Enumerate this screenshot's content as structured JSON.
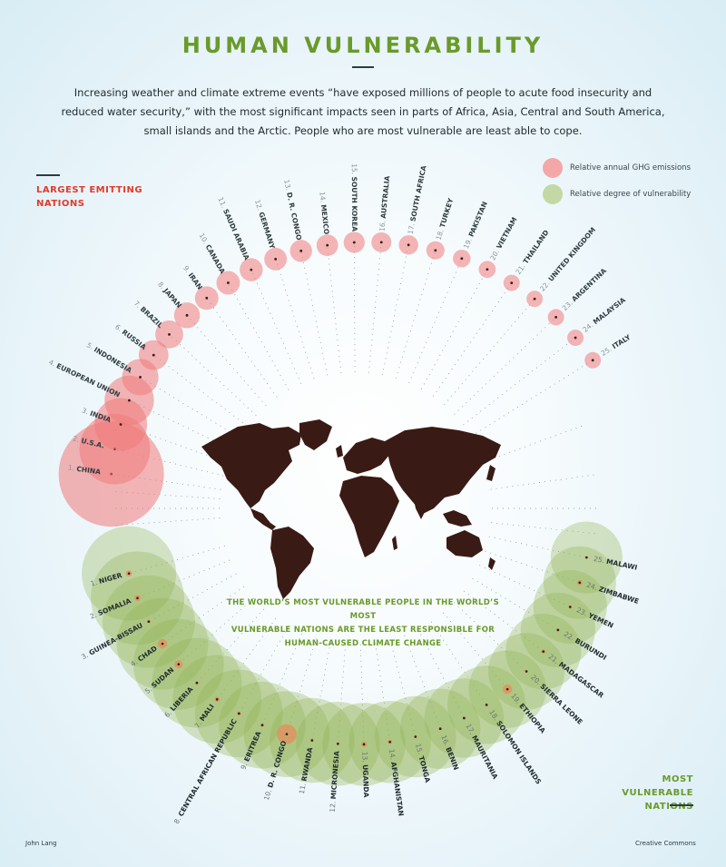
{
  "title": "HUMAN VULNERABILITY",
  "intro": "Increasing weather and climate extreme events “have exposed millions of people to acute food insecurity and reduced water security,” with the most significant impacts seen in parts of Africa, Asia, Central and South America, small islands and the Arctic. People who are most vulnerable are least able to cope.",
  "emitters_label": [
    "LARGEST EMITTING",
    "NATIONS"
  ],
  "vulnerable_label": [
    "MOST VULNERABLE",
    "NATIONS"
  ],
  "center_text": [
    "THE WORLD’S MOST VULNERABLE PEOPLE IN THE WORLD’S MOST",
    "VULNERABLE NATIONS ARE THE LEAST RESPONSIBLE FOR",
    "HUMAN-CAUSED CLIMATE CHANGE"
  ],
  "credits": {
    "author": "John Lang",
    "license": "Creative Commons"
  },
  "colors": {
    "emissions": "#f08a8a",
    "vulnerability": "#8fb04f",
    "title": "#6a9a2a",
    "emit_label": "#e03a2a",
    "map": "#3a1a14"
  },
  "chart_data": {
    "type": "bubble-radial",
    "legend": [
      {
        "label": "Relative annual GHG emissions",
        "color": "#f08a8a"
      },
      {
        "label": "Relative degree of vulnerability",
        "color": "#a9c98a"
      }
    ],
    "emissions": [
      {
        "rank": 1,
        "name": "CHINA",
        "value": 100
      },
      {
        "rank": 2,
        "name": "U.S.A.",
        "value": 45
      },
      {
        "rank": 3,
        "name": "INDIA",
        "value": 25
      },
      {
        "rank": 4,
        "name": "EUROPEAN UNION",
        "value": 22
      },
      {
        "rank": 5,
        "name": "INDONESIA",
        "value": 12
      },
      {
        "rank": 6,
        "name": "RUSSIA",
        "value": 8
      },
      {
        "rank": 7,
        "name": "BRAZIL",
        "value": 7
      },
      {
        "rank": 8,
        "name": "JAPAN",
        "value": 6
      },
      {
        "rank": 9,
        "name": "IRAN",
        "value": 5
      },
      {
        "rank": 10,
        "name": "CANADA",
        "value": 5
      },
      {
        "rank": 11,
        "name": "SAUDI ARABIA",
        "value": 4.8
      },
      {
        "rank": 12,
        "name": "GERMANY",
        "value": 4.6
      },
      {
        "rank": 13,
        "name": "D. R. CONGO",
        "value": 4.4
      },
      {
        "rank": 14,
        "name": "MEXICO",
        "value": 4.2
      },
      {
        "rank": 15,
        "name": "SOUTH KOREA",
        "value": 4
      },
      {
        "rank": 16,
        "name": "AUSTRALIA",
        "value": 3.6
      },
      {
        "rank": 17,
        "name": "SOUTH AFRICA",
        "value": 3.4
      },
      {
        "rank": 18,
        "name": "TURKEY",
        "value": 3
      },
      {
        "rank": 19,
        "name": "PAKISTAN",
        "value": 2.8
      },
      {
        "rank": 20,
        "name": "VIETNAM",
        "value": 2.6
      },
      {
        "rank": 21,
        "name": "THAILAND",
        "value": 2.4
      },
      {
        "rank": 22,
        "name": "UNITED KINGDOM",
        "value": 2.3
      },
      {
        "rank": 23,
        "name": "ARGENTINA",
        "value": 2.2
      },
      {
        "rank": 24,
        "name": "MALAYSIA",
        "value": 2.1
      },
      {
        "rank": 25,
        "name": "ITALY",
        "value": 2
      }
    ],
    "vulnerability": [
      {
        "rank": 1,
        "name": "NIGER",
        "value": 100,
        "emission": 1.1
      },
      {
        "rank": 2,
        "name": "SOMALIA",
        "value": 99,
        "emission": 1.1
      },
      {
        "rank": 3,
        "name": "GUINEA-BISSAU",
        "value": 98,
        "emission": 0.3
      },
      {
        "rank": 4,
        "name": "CHAD",
        "value": 97,
        "emission": 2.5
      },
      {
        "rank": 5,
        "name": "SUDAN",
        "value": 96,
        "emission": 2
      },
      {
        "rank": 6,
        "name": "LIBERIA",
        "value": 95,
        "emission": 0.3
      },
      {
        "rank": 7,
        "name": "MALI",
        "value": 94,
        "emission": 0.8
      },
      {
        "rank": 8,
        "name": "CENTRAL AFRICAN REPUBLIC",
        "value": 93,
        "emission": 0.5
      },
      {
        "rank": 9,
        "name": "ERITREA",
        "value": 92,
        "emission": 0.3
      },
      {
        "rank": 10,
        "name": "D. R. CONGO",
        "value": 91,
        "emission": 11
      },
      {
        "rank": 11,
        "name": "RWANDA",
        "value": 90,
        "emission": 0.3
      },
      {
        "rank": 12,
        "name": "MICRONESIA",
        "value": 89,
        "emission": 0.1
      },
      {
        "rank": 13,
        "name": "UGANDA",
        "value": 88,
        "emission": 0.8
      },
      {
        "rank": 14,
        "name": "AFGHANISTAN",
        "value": 87,
        "emission": 0.5
      },
      {
        "rank": 15,
        "name": "TONGA",
        "value": 86,
        "emission": 0.1
      },
      {
        "rank": 16,
        "name": "BENIN",
        "value": 85,
        "emission": 0.3
      },
      {
        "rank": 17,
        "name": "MAURITANIA",
        "value": 84,
        "emission": 0.2
      },
      {
        "rank": 18,
        "name": "SOLOMON ISLANDS",
        "value": 83,
        "emission": 0.1
      },
      {
        "rank": 19,
        "name": "ETHIOPIA",
        "value": 82,
        "emission": 2.5
      },
      {
        "rank": 20,
        "name": "SIERRA LEONE",
        "value": 81,
        "emission": 0.2
      },
      {
        "rank": 21,
        "name": "MADAGASCAR",
        "value": 80,
        "emission": 0.5
      },
      {
        "rank": 22,
        "name": "BURUNDI",
        "value": 79,
        "emission": 0.1
      },
      {
        "rank": 23,
        "name": "YEMEN",
        "value": 78,
        "emission": 0.3
      },
      {
        "rank": 24,
        "name": "ZIMBABWE",
        "value": 77,
        "emission": 0.8
      },
      {
        "rank": 25,
        "name": "MALAWI",
        "value": 76,
        "emission": 0.1
      }
    ]
  }
}
